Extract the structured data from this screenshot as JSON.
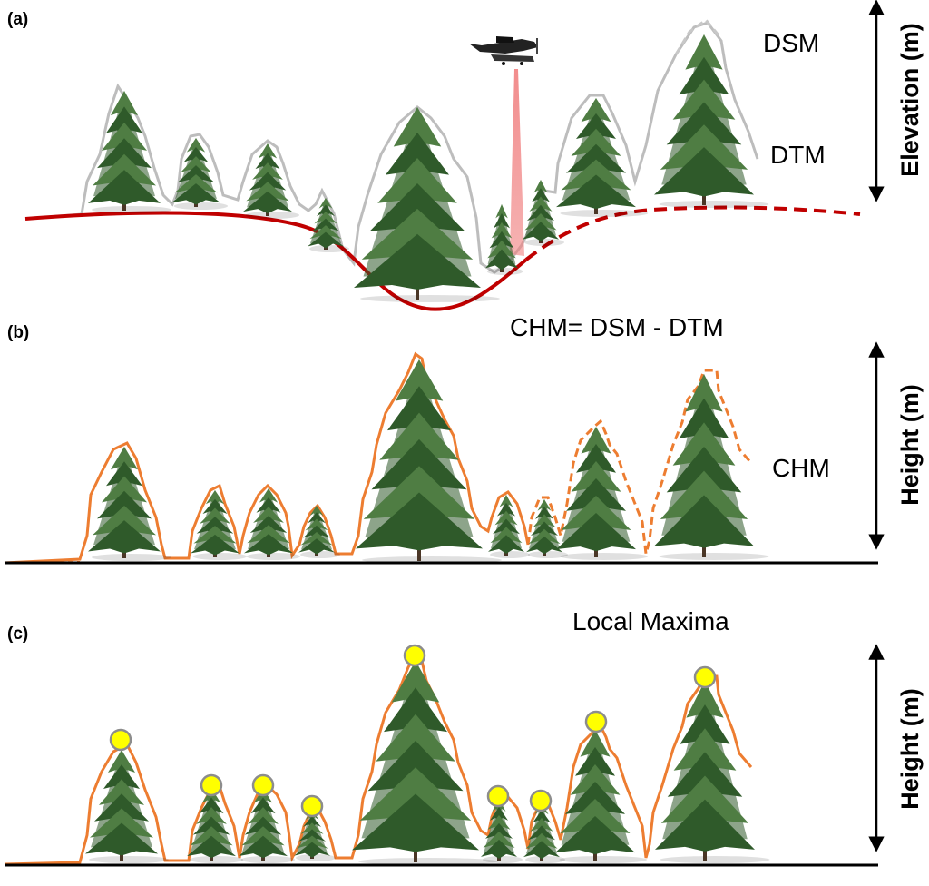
{
  "panels": {
    "a": {
      "label": "(a)",
      "dsm_label": "DSM",
      "dtm_label": "DTM",
      "axis_label": "Elevation (m)"
    },
    "b": {
      "label": "(b)",
      "formula": "CHM= DSM - DTM",
      "chm_label": "CHM",
      "axis_label": "Height (m)"
    },
    "c": {
      "label": "(c)",
      "title": "Local Maxima",
      "axis_label": "Height (m)"
    }
  },
  "colors": {
    "tree_foliage": "#2f5a2a",
    "tree_foliage_light": "#4f7d43",
    "trunk": "#4a3626",
    "dsm_outline": "#bdbdbd",
    "dtm_line": "#c00000",
    "chm_outline": "#ed7d31",
    "local_maxima_fill": "#ffff00",
    "local_maxima_stroke": "#8c8c8c",
    "laser_beam": "#f08080",
    "ground": "#000000"
  },
  "icons": {
    "aircraft": "plane-icon",
    "tree": "conifer-tree-icon",
    "local_maximum": "yellow-dot-icon",
    "axis_arrow": "double-arrow-icon"
  }
}
